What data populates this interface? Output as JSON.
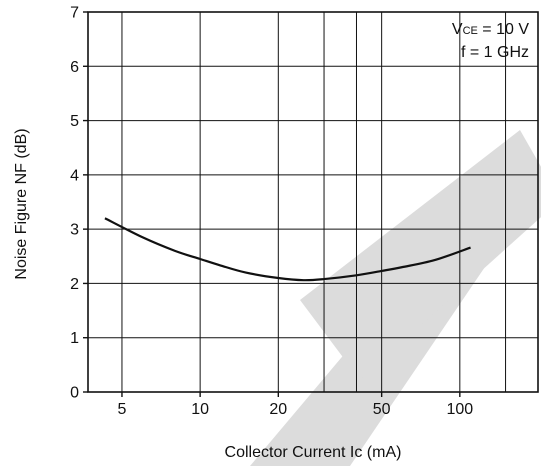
{
  "chart_data": {
    "type": "line",
    "title": "",
    "xlabel": "Collector Current  Ic (mA)",
    "ylabel": "Noise Figure  NF (dB)",
    "x_scale": "log",
    "xlim": [
      3.7,
      200
    ],
    "ylim": [
      0,
      7
    ],
    "grid": true,
    "x_ticks": [
      5,
      10,
      20,
      50,
      100
    ],
    "x_tick_labels": [
      "5",
      "10",
      "20",
      "50",
      "100"
    ],
    "x_minor_ticks": [
      30,
      40,
      150
    ],
    "y_ticks": [
      0,
      1,
      2,
      3,
      4,
      5,
      6,
      7
    ],
    "y_tick_labels": [
      "0",
      "1",
      "2",
      "3",
      "4",
      "5",
      "6",
      "7"
    ],
    "conditions": {
      "vce_prefix": "V",
      "vce_sub": "CE",
      "vce_rest": " = 10 V",
      "freq": "f = 1 GHz",
      "placement": "top-right"
    },
    "series": [
      {
        "x": [
          4.3,
          6,
          8,
          10,
          12,
          15,
          20,
          25,
          30,
          40,
          50,
          60,
          80,
          110
        ],
        "y": [
          3.2,
          2.85,
          2.6,
          2.45,
          2.33,
          2.2,
          2.1,
          2.06,
          2.08,
          2.15,
          2.23,
          2.3,
          2.43,
          2.66
        ]
      }
    ],
    "colors": {
      "line": "#111111",
      "grid": "#111111",
      "watermark": "#dcdcdc"
    }
  }
}
